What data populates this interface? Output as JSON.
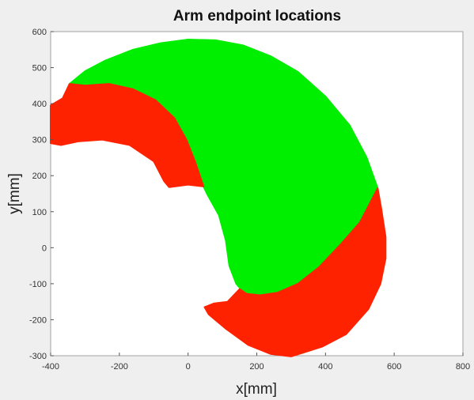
{
  "chart_data": {
    "type": "area",
    "title": "Arm endpoint locations",
    "xlabel": "x[mm]",
    "ylabel": "y[mm]",
    "xlim": [
      -400,
      800
    ],
    "ylim": [
      -300,
      600
    ],
    "xticks": [
      -400,
      -200,
      0,
      200,
      400,
      600,
      800
    ],
    "yticks": [
      -300,
      -200,
      -100,
      0,
      100,
      200,
      300,
      400,
      500,
      600
    ],
    "grid": false,
    "regions": [
      {
        "color": "#00ee00",
        "polygon": [
          [
            -345,
            455
          ],
          [
            -300,
            490
          ],
          [
            -240,
            520
          ],
          [
            -160,
            550
          ],
          [
            -80,
            568
          ],
          [
            0,
            578
          ],
          [
            80,
            576
          ],
          [
            160,
            562
          ],
          [
            240,
            532
          ],
          [
            320,
            488
          ],
          [
            400,
            420
          ],
          [
            470,
            340
          ],
          [
            520,
            250
          ],
          [
            552,
            165
          ],
          [
            500,
            70
          ],
          [
            440,
            5
          ],
          [
            380,
            -55
          ],
          [
            320,
            -100
          ],
          [
            260,
            -125
          ],
          [
            210,
            -132
          ],
          [
            165,
            -128
          ],
          [
            140,
            -100
          ],
          [
            120,
            -50
          ],
          [
            110,
            20
          ],
          [
            90,
            90
          ],
          [
            55,
            150
          ],
          [
            45,
            170
          ],
          [
            20,
            240
          ],
          [
            -5,
            300
          ],
          [
            -40,
            360
          ],
          [
            -95,
            410
          ],
          [
            -160,
            440
          ],
          [
            -230,
            455
          ],
          [
            -300,
            450
          ]
        ]
      },
      {
        "color": "#ff2200",
        "polygon": [
          [
            -400,
            395
          ],
          [
            -365,
            415
          ],
          [
            -345,
            455
          ],
          [
            -300,
            450
          ],
          [
            -230,
            455
          ],
          [
            -160,
            440
          ],
          [
            -95,
            410
          ],
          [
            -40,
            360
          ],
          [
            -5,
            300
          ],
          [
            20,
            240
          ],
          [
            45,
            170
          ],
          [
            0,
            175
          ],
          [
            -55,
            168
          ],
          [
            -70,
            185
          ],
          [
            -100,
            240
          ],
          [
            -170,
            285
          ],
          [
            -250,
            300
          ],
          [
            -320,
            295
          ],
          [
            -370,
            285
          ],
          [
            -400,
            290
          ]
        ]
      },
      {
        "color": "#ff2200",
        "polygon": [
          [
            552,
            165
          ],
          [
            562,
            110
          ],
          [
            575,
            30
          ],
          [
            575,
            -30
          ],
          [
            560,
            -100
          ],
          [
            525,
            -170
          ],
          [
            460,
            -240
          ],
          [
            390,
            -275
          ],
          [
            300,
            -302
          ],
          [
            240,
            -295
          ],
          [
            175,
            -270
          ],
          [
            110,
            -225
          ],
          [
            60,
            -185
          ],
          [
            48,
            -165
          ],
          [
            75,
            -155
          ],
          [
            115,
            -150
          ],
          [
            150,
            -115
          ],
          [
            170,
            -128
          ],
          [
            210,
            -132
          ],
          [
            260,
            -125
          ],
          [
            320,
            -100
          ],
          [
            380,
            -55
          ],
          [
            440,
            5
          ],
          [
            500,
            70
          ]
        ]
      }
    ]
  }
}
